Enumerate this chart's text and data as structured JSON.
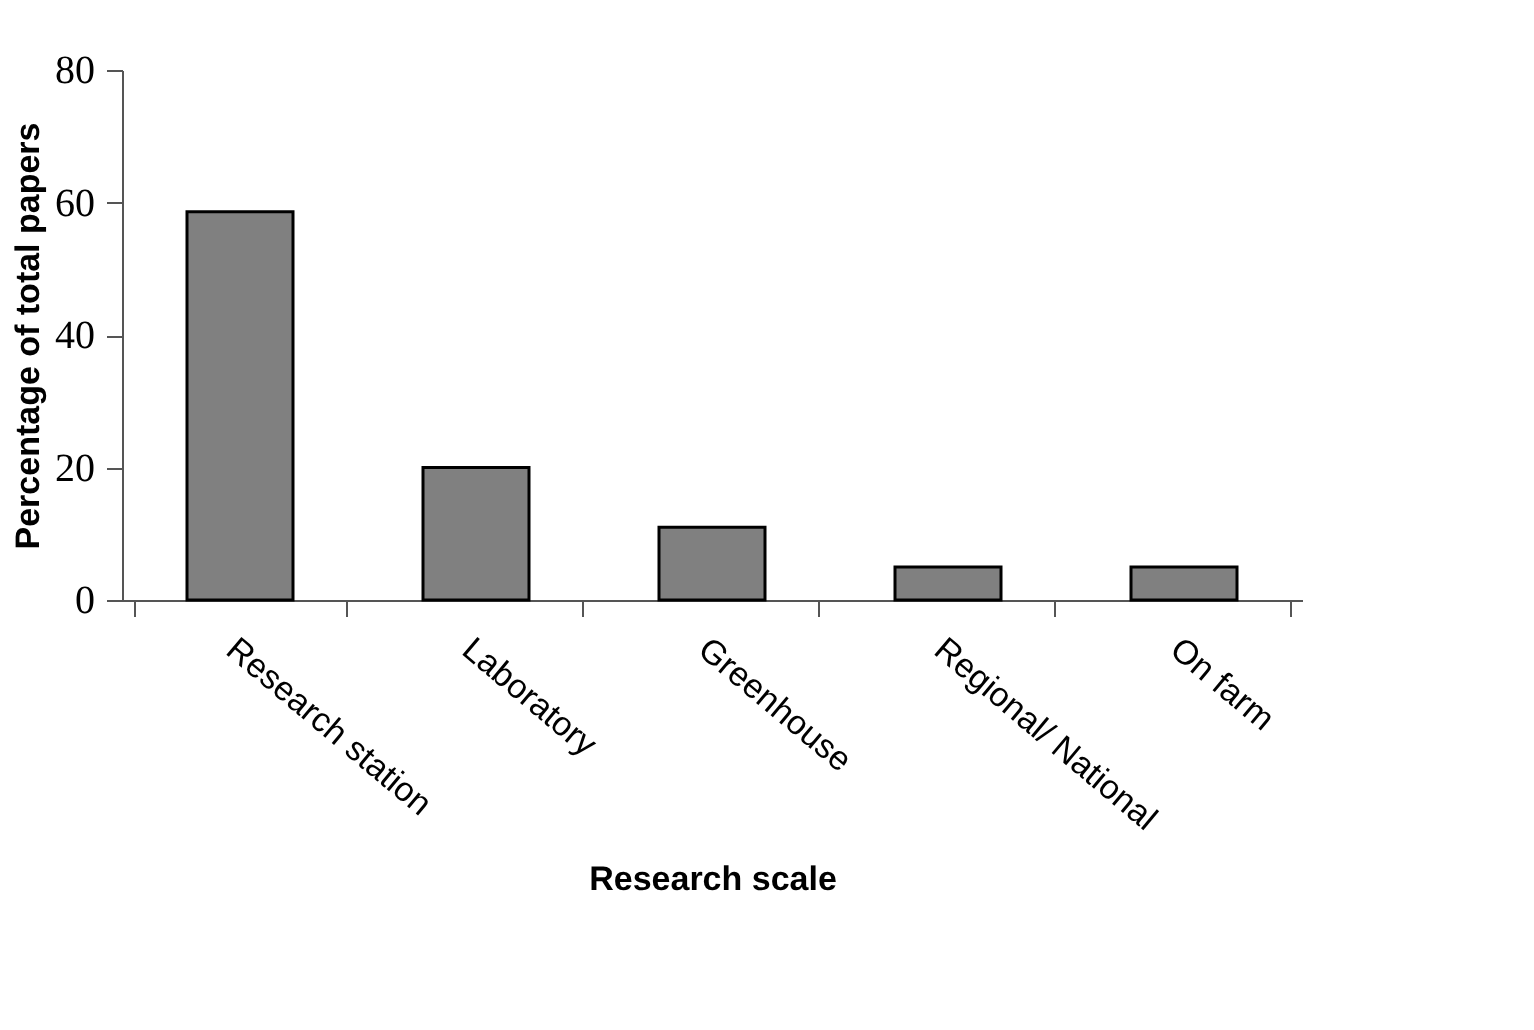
{
  "chart_data": {
    "type": "bar",
    "categories": [
      "Research station",
      "Laboratory",
      "Greenhouse",
      "Regional/ National",
      "On farm"
    ],
    "values": [
      58.6,
      20,
      11,
      5,
      5
    ],
    "color": "#808080",
    "xlabel": "Research scale",
    "ylabel": "Percentage of total papers",
    "ylim": [
      0,
      80
    ],
    "yticks": [
      0,
      20,
      40,
      60,
      80
    ],
    "grid": false
  }
}
